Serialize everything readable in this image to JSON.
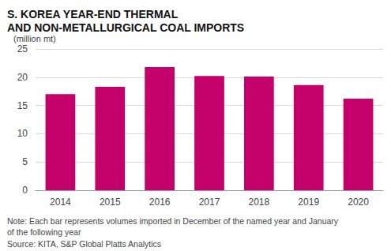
{
  "chart_data": {
    "type": "bar",
    "title": "S. KOREA YEAR-END THERMAL\nAND NON-METALLURGICAL COAL IMPORTS",
    "subtitle": "(million mt)",
    "note": "Note: Each bar represents volumes imported in December of the named year and January\nof the following year",
    "source": "Source: KITA, S&P Global Platts Analytics",
    "categories": [
      "2014",
      "2015",
      "2016",
      "2017",
      "2018",
      "2019",
      "2020"
    ],
    "values": [
      17.0,
      18.3,
      21.8,
      20.2,
      20.1,
      18.6,
      16.2
    ],
    "color": "#c4006a",
    "ylim": [
      0,
      25
    ],
    "yticks": [
      0,
      5,
      10,
      15,
      20,
      25
    ],
    "grid": true
  }
}
